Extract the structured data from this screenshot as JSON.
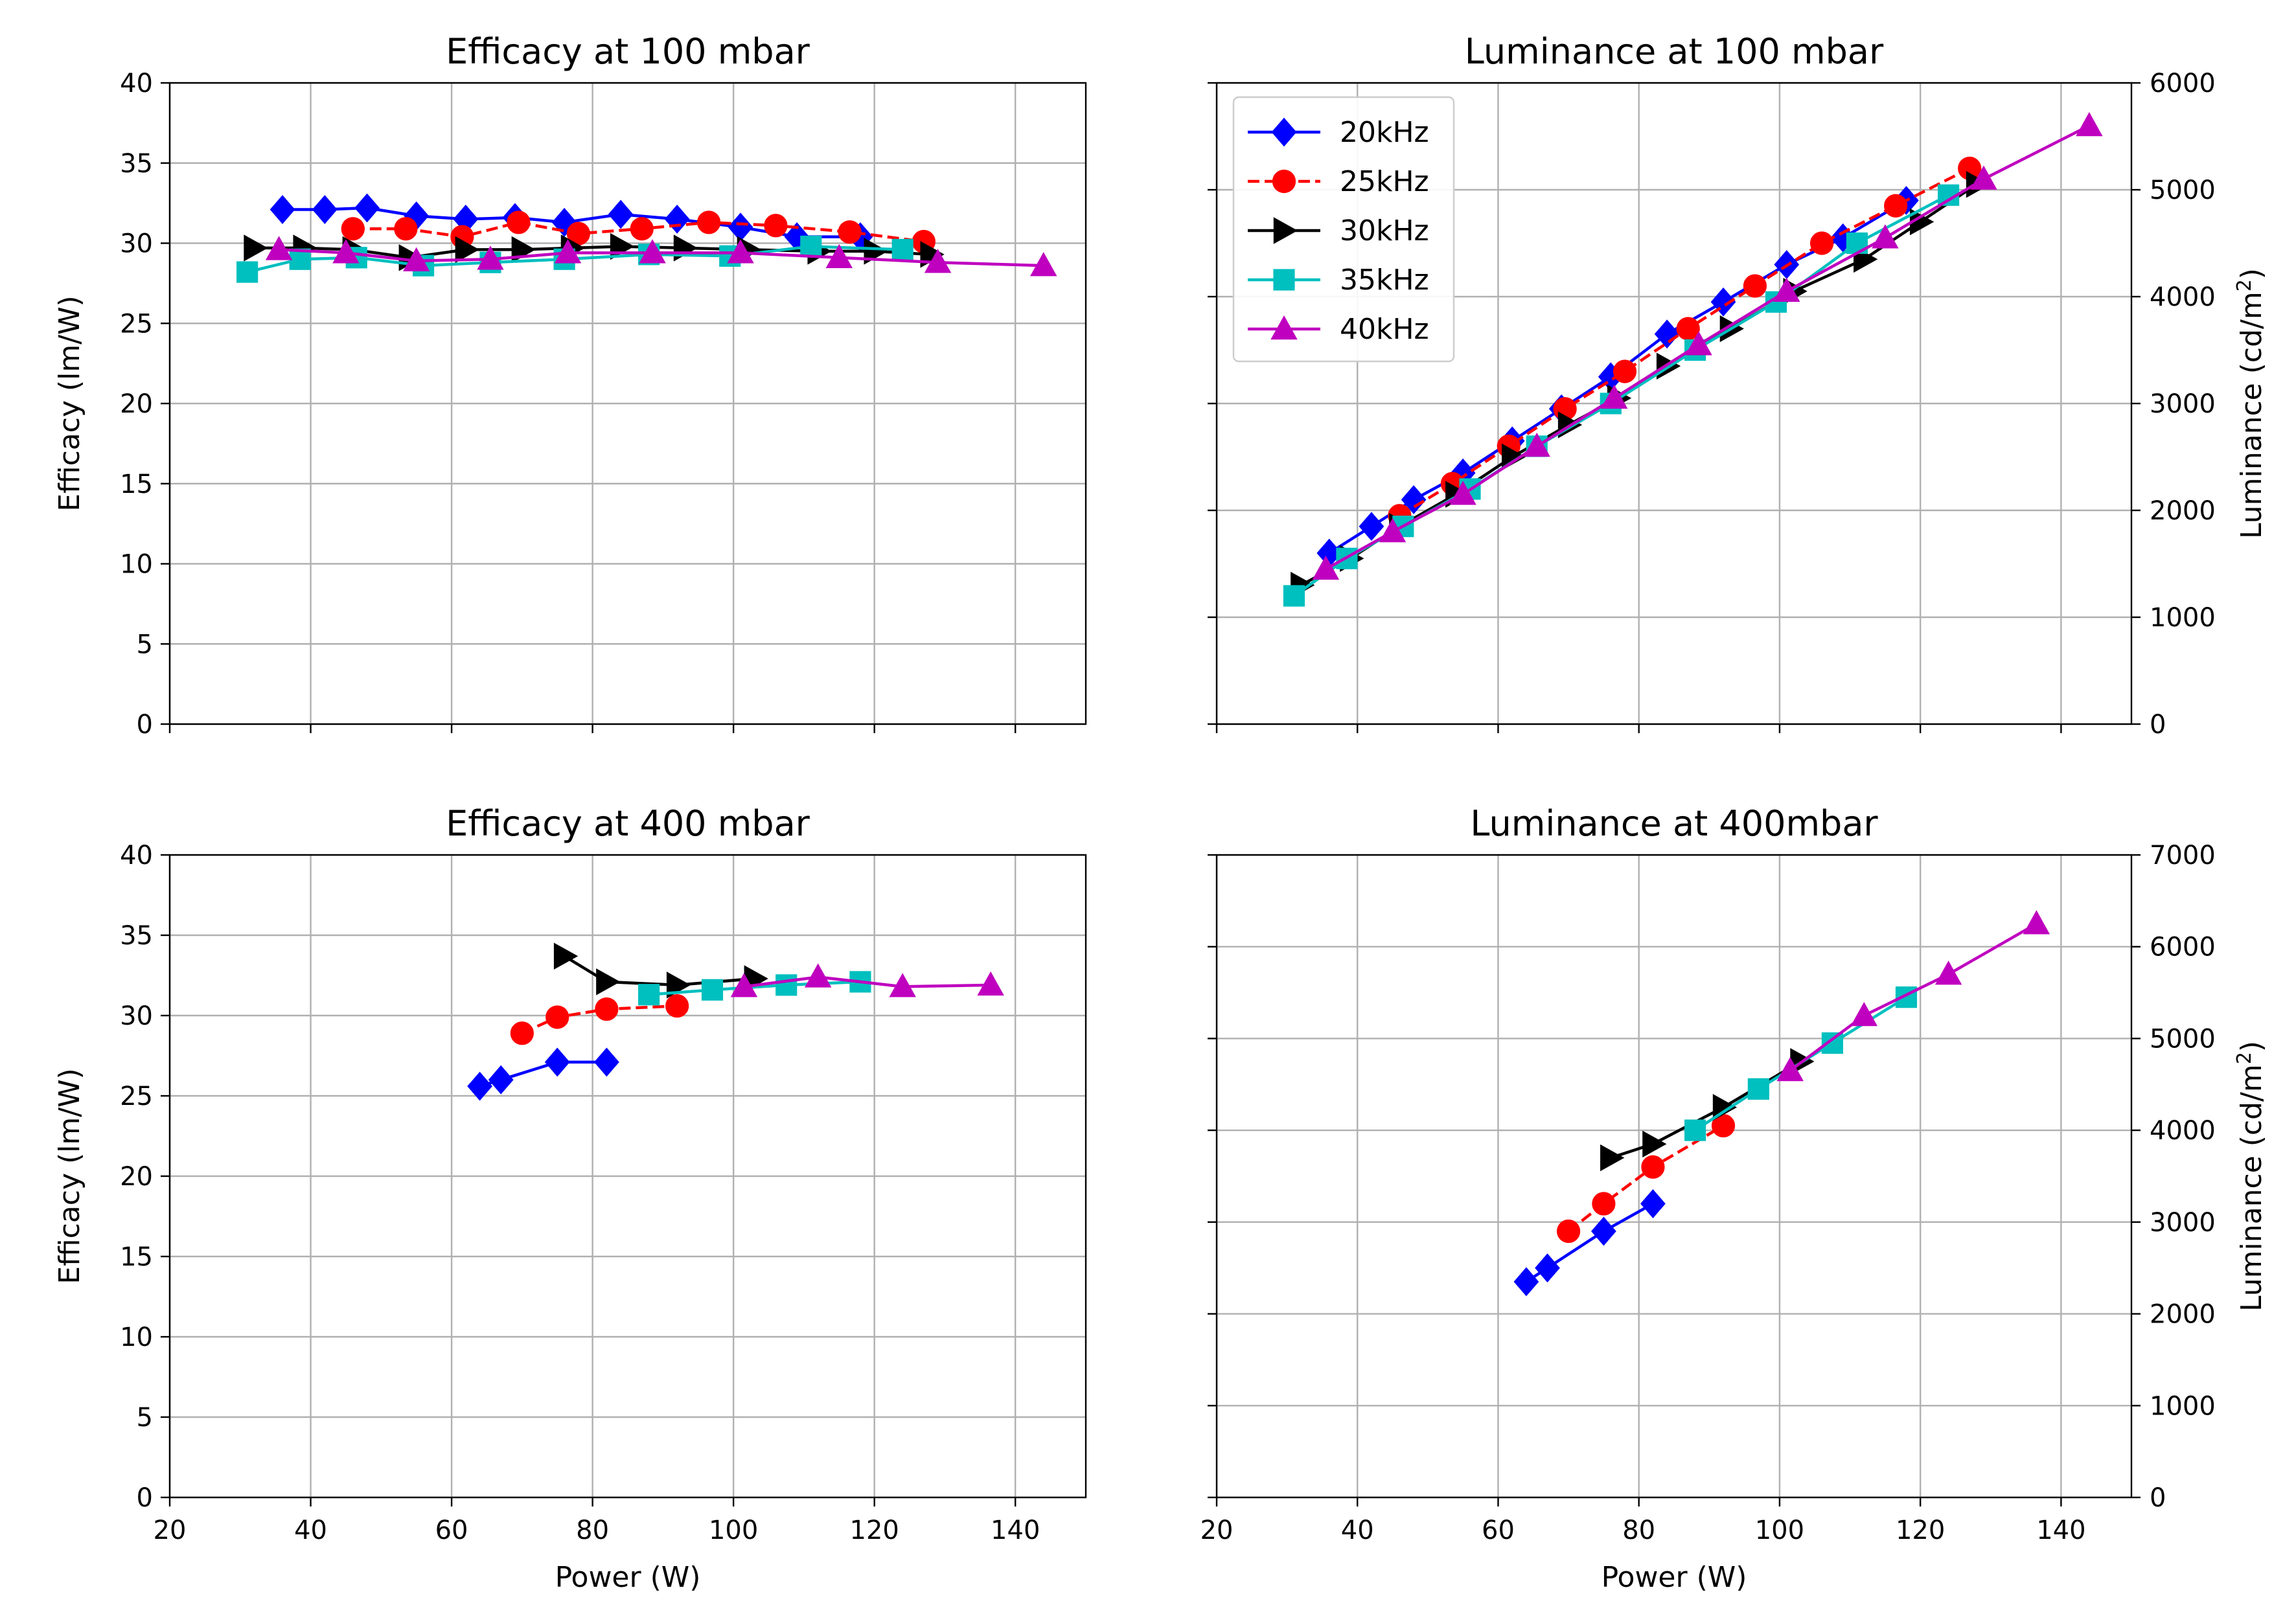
{
  "chart_data": [
    {
      "type": "line",
      "title": "Efficacy at 100 mbar",
      "xlabel": "",
      "ylabel": "Efficacy (lm/W)",
      "xlim": [
        20,
        150
      ],
      "ylim": [
        0,
        40
      ],
      "xticks": [
        20,
        40,
        60,
        80,
        100,
        120,
        140
      ],
      "xticklabels": false,
      "yticks": [
        0,
        5,
        10,
        15,
        20,
        25,
        30,
        35,
        40
      ],
      "ticklabels_y": [
        "0",
        "5",
        "10",
        "15",
        "20",
        "25",
        "30",
        "35",
        "40"
      ],
      "yaxis_side": "left",
      "grid": true,
      "series": [
        {
          "name": "20kHz",
          "color": "#0000ff",
          "marker": "diamond",
          "dash": "solid",
          "x": [
            36,
            42,
            48,
            55,
            62,
            69,
            76,
            84,
            92,
            101,
            109,
            118
          ],
          "y": [
            32.1,
            32.1,
            32.2,
            31.7,
            31.5,
            31.6,
            31.3,
            31.8,
            31.5,
            31.0,
            30.4,
            30.4
          ]
        },
        {
          "name": "25kHz",
          "color": "#ff0000",
          "marker": "circle",
          "dash": "dashed",
          "x": [
            46,
            53.5,
            61.5,
            69.5,
            78,
            87,
            96.5,
            106,
            116.5,
            127
          ],
          "y": [
            30.9,
            30.9,
            30.4,
            31.3,
            30.6,
            30.9,
            31.3,
            31.1,
            30.7,
            30.1
          ]
        },
        {
          "name": "30kHz",
          "color": "#000000",
          "marker": "triangle-right",
          "dash": "solid",
          "x": [
            32,
            39,
            46,
            54,
            62,
            70,
            77,
            84,
            93,
            102,
            112,
            120,
            128
          ],
          "y": [
            29.7,
            29.7,
            29.6,
            29.1,
            29.6,
            29.6,
            29.7,
            29.8,
            29.7,
            29.6,
            29.5,
            29.5,
            29.3
          ]
        },
        {
          "name": "35kHz",
          "color": "#00bfbf",
          "marker": "square",
          "dash": "solid",
          "x": [
            31,
            38.5,
            46.5,
            56,
            65.5,
            76,
            88,
            99.5,
            111,
            124
          ],
          "y": [
            28.2,
            29.0,
            29.1,
            28.6,
            28.8,
            29.0,
            29.3,
            29.2,
            29.8,
            29.6
          ]
        },
        {
          "name": "40kHz",
          "color": "#bf00bf",
          "marker": "triangle-up",
          "dash": "solid",
          "x": [
            35.5,
            45,
            55,
            65.5,
            76.5,
            88.5,
            101,
            115,
            129,
            144
          ],
          "y": [
            29.6,
            29.4,
            28.9,
            29.0,
            29.4,
            29.4,
            29.4,
            29.1,
            28.8,
            28.6
          ]
        }
      ]
    },
    {
      "type": "line",
      "title": "Luminance at 100 mbar",
      "xlabel": "",
      "ylabel": "Luminance (cd/m²)",
      "ylabel_main": "Luminance (cd/m",
      "ylabel_sup": "2",
      "ylabel_close": ")",
      "xlim": [
        20,
        150
      ],
      "ylim": [
        0,
        6000
      ],
      "xticks": [
        20,
        40,
        60,
        80,
        100,
        120,
        140
      ],
      "xticklabels": false,
      "yticks": [
        0,
        1000,
        2000,
        3000,
        4000,
        5000,
        6000
      ],
      "ticklabels_y": [
        "0",
        "1000",
        "2000",
        "3000",
        "4000",
        "5000",
        "6000"
      ],
      "yaxis_side": "right",
      "grid": true,
      "legend": {
        "position": "upper-left",
        "entries": [
          "20kHz",
          "25kHz",
          "30kHz",
          "35kHz",
          "40kHz"
        ]
      },
      "series": [
        {
          "name": "20kHz",
          "color": "#0000ff",
          "marker": "diamond",
          "dash": "solid",
          "x": [
            36,
            42,
            48,
            55,
            62,
            69,
            76,
            84,
            92,
            101,
            109,
            118
          ],
          "y": [
            1600,
            1850,
            2100,
            2350,
            2650,
            2950,
            3250,
            3650,
            3950,
            4300,
            4550,
            4900
          ]
        },
        {
          "name": "25kHz",
          "color": "#ff0000",
          "marker": "circle",
          "dash": "dashed",
          "x": [
            46,
            53.5,
            61.5,
            69.5,
            78,
            87,
            96.5,
            106,
            116.5,
            127
          ],
          "y": [
            1950,
            2250,
            2600,
            2950,
            3300,
            3700,
            4100,
            4500,
            4850,
            5200
          ]
        },
        {
          "name": "30kHz",
          "color": "#000000",
          "marker": "triangle-right",
          "dash": "solid",
          "x": [
            32,
            39,
            46,
            54,
            62,
            70,
            77,
            84,
            93,
            102,
            112,
            120,
            128
          ],
          "y": [
            1300,
            1550,
            1850,
            2150,
            2500,
            2800,
            3050,
            3350,
            3700,
            4050,
            4350,
            4700,
            5050
          ]
        },
        {
          "name": "35kHz",
          "color": "#00bfbf",
          "marker": "square",
          "dash": "solid",
          "x": [
            31,
            38.5,
            46.5,
            56,
            65.5,
            76,
            88,
            99.5,
            111,
            124
          ],
          "y": [
            1200,
            1550,
            1850,
            2200,
            2600,
            3000,
            3500,
            3950,
            4500,
            4950
          ]
        },
        {
          "name": "40kHz",
          "color": "#bf00bf",
          "marker": "triangle-up",
          "dash": "solid",
          "x": [
            35.5,
            45,
            55,
            65.5,
            76.5,
            88.5,
            101,
            115,
            129,
            144
          ],
          "y": [
            1450,
            1800,
            2150,
            2600,
            3050,
            3550,
            4050,
            4550,
            5100,
            5600
          ]
        }
      ]
    },
    {
      "type": "line",
      "title": "Efficacy at 400 mbar",
      "xlabel": "Power (W)",
      "ylabel": "Efficacy (lm/W)",
      "xlim": [
        20,
        150
      ],
      "ylim": [
        0,
        40
      ],
      "xticks": [
        20,
        40,
        60,
        80,
        100,
        120,
        140
      ],
      "xticklabels": true,
      "ticklabels_x": [
        "20",
        "40",
        "60",
        "80",
        "100",
        "120",
        "140"
      ],
      "yticks": [
        0,
        5,
        10,
        15,
        20,
        25,
        30,
        35,
        40
      ],
      "ticklabels_y": [
        "0",
        "5",
        "10",
        "15",
        "20",
        "25",
        "30",
        "35",
        "40"
      ],
      "yaxis_side": "left",
      "grid": true,
      "series": [
        {
          "name": "20kHz",
          "color": "#0000ff",
          "marker": "diamond",
          "dash": "solid",
          "x": [
            64,
            67,
            75,
            82
          ],
          "y": [
            25.6,
            26.0,
            27.1,
            27.1
          ]
        },
        {
          "name": "25kHz",
          "color": "#ff0000",
          "marker": "circle",
          "dash": "dashed",
          "x": [
            70,
            75,
            82,
            92
          ],
          "y": [
            28.9,
            29.9,
            30.4,
            30.6
          ]
        },
        {
          "name": "30kHz",
          "color": "#000000",
          "marker": "triangle-right",
          "dash": "solid",
          "x": [
            76,
            82,
            92,
            103
          ],
          "y": [
            33.7,
            32.1,
            31.9,
            32.3
          ]
        },
        {
          "name": "35kHz",
          "color": "#00bfbf",
          "marker": "square",
          "dash": "solid",
          "x": [
            88,
            97,
            107.5,
            118
          ],
          "y": [
            31.3,
            31.6,
            31.9,
            32.1
          ]
        },
        {
          "name": "40kHz",
          "color": "#bf00bf",
          "marker": "triangle-up",
          "dash": "solid",
          "x": [
            101.5,
            112,
            124,
            136.5
          ],
          "y": [
            31.8,
            32.4,
            31.8,
            31.9
          ]
        }
      ]
    },
    {
      "type": "line",
      "title": "Luminance at 400mbar",
      "xlabel": "Power (W)",
      "ylabel": "Luminance (cd/m²)",
      "ylabel_main": "Luminance (cd/m",
      "ylabel_sup": "2",
      "ylabel_close": ")",
      "xlim": [
        20,
        150
      ],
      "ylim": [
        0,
        7000
      ],
      "xticks": [
        20,
        40,
        60,
        80,
        100,
        120,
        140
      ],
      "xticklabels": true,
      "ticklabels_x": [
        "20",
        "40",
        "60",
        "80",
        "100",
        "120",
        "140"
      ],
      "yticks": [
        0,
        1000,
        2000,
        3000,
        4000,
        5000,
        6000,
        7000
      ],
      "ticklabels_y": [
        "0",
        "1000",
        "2000",
        "3000",
        "4000",
        "5000",
        "6000",
        "7000"
      ],
      "yaxis_side": "right",
      "grid": true,
      "series": [
        {
          "name": "20kHz",
          "color": "#0000ff",
          "marker": "diamond",
          "dash": "solid",
          "x": [
            64,
            67,
            75,
            82
          ],
          "y": [
            2350,
            2500,
            2900,
            3200
          ]
        },
        {
          "name": "25kHz",
          "color": "#ff0000",
          "marker": "circle",
          "dash": "dashed",
          "x": [
            70,
            75,
            82,
            92
          ],
          "y": [
            2900,
            3200,
            3600,
            4050
          ]
        },
        {
          "name": "30kHz",
          "color": "#000000",
          "marker": "triangle-right",
          "dash": "solid",
          "x": [
            76,
            82,
            92,
            103
          ],
          "y": [
            3700,
            3850,
            4250,
            4750
          ]
        },
        {
          "name": "35kHz",
          "color": "#00bfbf",
          "marker": "square",
          "dash": "solid",
          "x": [
            88,
            97,
            107.5,
            118
          ],
          "y": [
            4000,
            4450,
            4950,
            5450
          ]
        },
        {
          "name": "40kHz",
          "color": "#bf00bf",
          "marker": "triangle-up",
          "dash": "solid",
          "x": [
            101.5,
            112,
            124,
            136.5
          ],
          "y": [
            4650,
            5250,
            5700,
            6250
          ]
        }
      ]
    }
  ]
}
